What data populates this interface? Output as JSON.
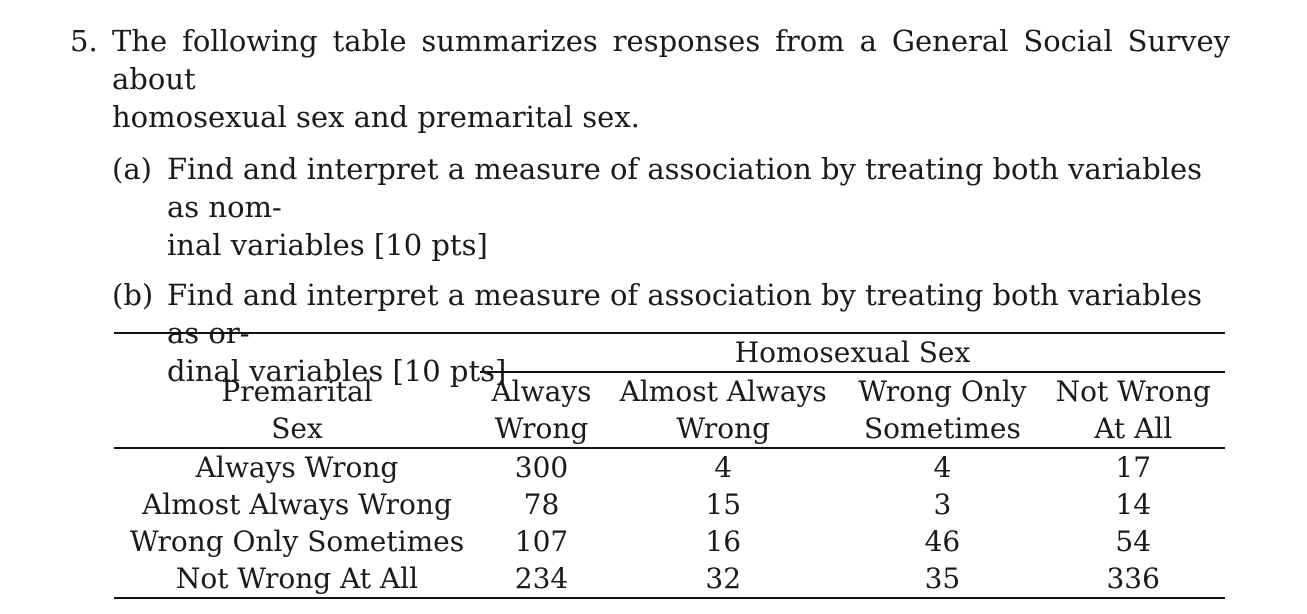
{
  "problem": {
    "number": "5.",
    "text_line1": "The following table summarizes responses from a General Social Survey about",
    "text_line2": "homosexual sex and premarital sex.",
    "parts": [
      {
        "label": "(a)",
        "line1": "Find and interpret a measure of association by treating both variables as nom-",
        "line2": "inal variables [10 pts]"
      },
      {
        "label": "(b)",
        "line1": "Find and interpret a measure of association by treating both variables as or-",
        "line2": "dinal variables [10 pts]"
      }
    ]
  },
  "table": {
    "column_group": "Homosexual Sex",
    "row_header_line1": "Premarital",
    "row_header_line2": "Sex",
    "columns": [
      {
        "line1": "Always",
        "line2": "Wrong"
      },
      {
        "line1": "Almost Always",
        "line2": "Wrong"
      },
      {
        "line1": "Wrong Only",
        "line2": "Sometimes"
      },
      {
        "line1": "Not Wrong",
        "line2": "At All"
      }
    ],
    "rows": [
      {
        "label": "Always Wrong",
        "values": [
          "300",
          "4",
          "4",
          "17"
        ]
      },
      {
        "label": "Almost Always Wrong",
        "values": [
          "78",
          "15",
          "3",
          "14"
        ]
      },
      {
        "label": "Wrong Only Sometimes",
        "values": [
          "107",
          "16",
          "46",
          "54"
        ]
      },
      {
        "label": "Not Wrong At All",
        "values": [
          "234",
          "32",
          "35",
          "336"
        ]
      }
    ]
  }
}
